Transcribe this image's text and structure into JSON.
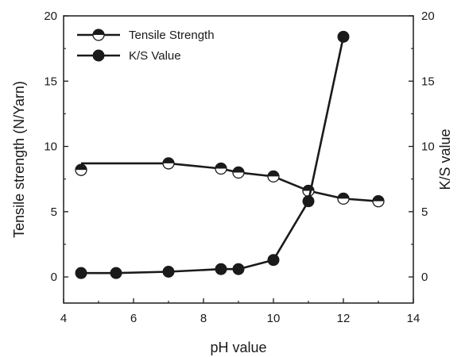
{
  "chart_data": {
    "type": "line",
    "xlabel": "pH value",
    "ylabel_left": "Tensile strength (N/Yarn)",
    "ylabel_right": "K/S value",
    "xlim": [
      4,
      14
    ],
    "ylim_left": [
      -2,
      20
    ],
    "ylim_right": [
      -2,
      20
    ],
    "x_ticks": [
      4,
      6,
      8,
      10,
      12,
      14
    ],
    "y_ticks_left": [
      0,
      5,
      10,
      15,
      20
    ],
    "y_ticks_right": [
      0,
      5,
      10,
      15,
      20
    ],
    "grid": false,
    "legend_position": "top-left",
    "series": [
      {
        "name": "Tensile Strength",
        "marker": "half-filled-circle",
        "x": [
          4.5,
          7,
          8.5,
          9,
          10,
          11,
          12,
          13
        ],
        "y": [
          8.2,
          8.7,
          8.3,
          8.0,
          7.7,
          6.6,
          6.0,
          5.8
        ],
        "line_y": [
          8.7,
          8.7,
          8.3,
          8.0,
          7.7,
          6.6,
          6.0,
          5.8
        ]
      },
      {
        "name": "K/S Value",
        "marker": "filled-circle",
        "x": [
          4.5,
          5.5,
          7,
          8.5,
          9,
          10,
          11,
          12
        ],
        "y": [
          0.3,
          0.3,
          0.4,
          0.6,
          0.6,
          1.3,
          5.8,
          18.4
        ]
      }
    ]
  }
}
